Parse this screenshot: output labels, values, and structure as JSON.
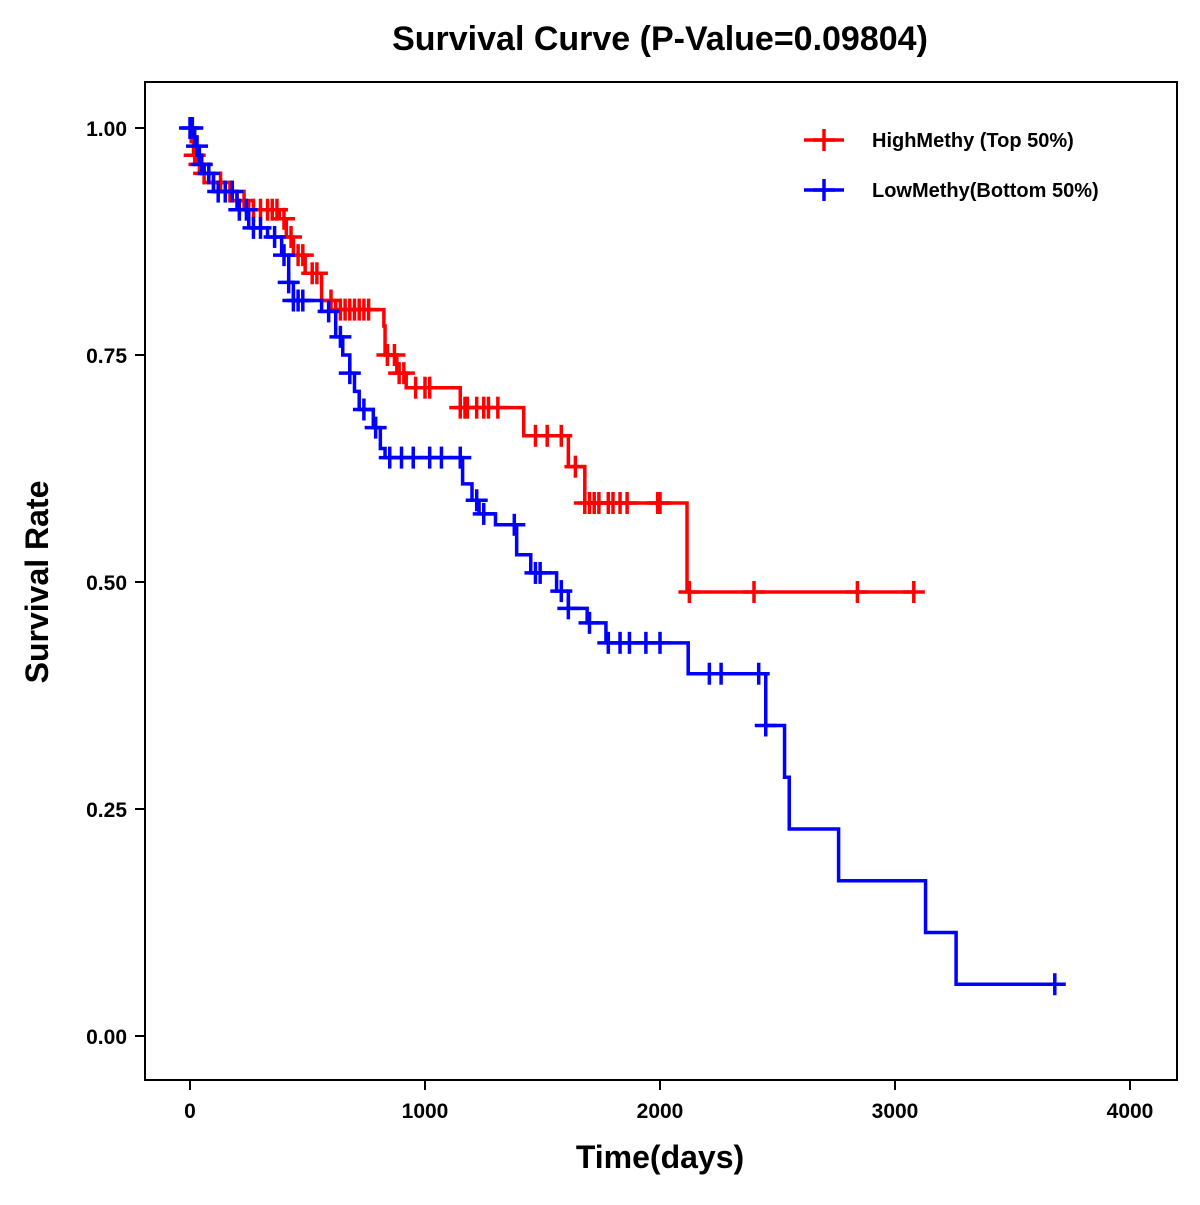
{
  "chart_data": {
    "type": "line",
    "subtype": "kaplan-meier step",
    "title": "Survival Curve (P-Value=0.09804)",
    "xlabel": "Time(days)",
    "ylabel": "Survival Rate",
    "xlim": [
      -200,
      4200
    ],
    "ylim": [
      -0.05,
      1.05
    ],
    "xticks": [
      0,
      1000,
      2000,
      3000,
      4000
    ],
    "xtick_labels": [
      "0",
      "1000",
      "2000",
      "3000",
      "4000"
    ],
    "yticks": [
      0,
      0.25,
      0.5,
      0.75,
      1.0
    ],
    "ytick_labels": [
      "0.00",
      "0.25",
      "0.50",
      "0.75",
      "1.00"
    ],
    "grid": false,
    "legend_position": "top-right",
    "series": [
      {
        "name": "HighMethy (Top 50%)",
        "color": "#ff0000",
        "end": 3080,
        "steps": [
          [
            0,
            1.0
          ],
          [
            5,
            0.985
          ],
          [
            15,
            0.97
          ],
          [
            30,
            0.96
          ],
          [
            50,
            0.95
          ],
          [
            80,
            0.94
          ],
          [
            150,
            0.93
          ],
          [
            200,
            0.92
          ],
          [
            250,
            0.91
          ],
          [
            380,
            0.9
          ],
          [
            410,
            0.88
          ],
          [
            440,
            0.86
          ],
          [
            490,
            0.84
          ],
          [
            560,
            0.81
          ],
          [
            620,
            0.8
          ],
          [
            825,
            0.782
          ],
          [
            830,
            0.75
          ],
          [
            880,
            0.73
          ],
          [
            920,
            0.714
          ],
          [
            1150,
            0.692
          ],
          [
            1420,
            0.661
          ],
          [
            1610,
            0.627
          ],
          [
            1680,
            0.587
          ],
          [
            2115,
            0.489
          ]
        ],
        "censored": [
          20,
          40,
          60,
          100,
          130,
          170,
          230,
          270,
          300,
          330,
          350,
          370,
          400,
          430,
          460,
          480,
          520,
          540,
          600,
          640,
          660,
          680,
          700,
          720,
          740,
          760,
          840,
          870,
          890,
          910,
          960,
          1000,
          1020,
          1150,
          1170,
          1180,
          1220,
          1250,
          1270,
          1310,
          1470,
          1520,
          1580,
          1640,
          1680,
          1700,
          1720,
          1740,
          1780,
          1800,
          1830,
          1860,
          1990,
          2000,
          2125,
          2400,
          2840,
          3080
        ]
      },
      {
        "name": "LowMethy(Bottom 50%)",
        "color": "#0000ff",
        "end": 3700,
        "steps": [
          [
            0,
            1.0
          ],
          [
            20,
            0.98
          ],
          [
            40,
            0.96
          ],
          [
            60,
            0.95
          ],
          [
            100,
            0.93
          ],
          [
            200,
            0.91
          ],
          [
            250,
            0.89
          ],
          [
            330,
            0.88
          ],
          [
            390,
            0.86
          ],
          [
            420,
            0.83
          ],
          [
            440,
            0.81
          ],
          [
            560,
            0.798
          ],
          [
            620,
            0.77
          ],
          [
            650,
            0.75
          ],
          [
            680,
            0.73
          ],
          [
            700,
            0.71
          ],
          [
            720,
            0.69
          ],
          [
            780,
            0.67
          ],
          [
            810,
            0.647
          ],
          [
            830,
            0.637
          ],
          [
            1160,
            0.608
          ],
          [
            1200,
            0.59
          ],
          [
            1230,
            0.575
          ],
          [
            1300,
            0.563
          ],
          [
            1390,
            0.53
          ],
          [
            1450,
            0.51
          ],
          [
            1560,
            0.49
          ],
          [
            1610,
            0.471
          ],
          [
            1690,
            0.455
          ],
          [
            1770,
            0.433
          ],
          [
            2120,
            0.399
          ],
          [
            2450,
            0.342
          ],
          [
            2530,
            0.285
          ],
          [
            2550,
            0.228
          ],
          [
            2760,
            0.171
          ],
          [
            3130,
            0.114
          ],
          [
            3260,
            0.057
          ]
        ],
        "censored": [
          0,
          10,
          30,
          50,
          80,
          120,
          150,
          180,
          210,
          240,
          270,
          300,
          360,
          400,
          420,
          440,
          460,
          480,
          590,
          640,
          680,
          740,
          790,
          850,
          900,
          950,
          1020,
          1070,
          1150,
          1220,
          1250,
          1380,
          1470,
          1490,
          1580,
          1610,
          1700,
          1780,
          1830,
          1870,
          1940,
          2000,
          2210,
          2260,
          2420,
          2450,
          3680
        ]
      }
    ]
  }
}
